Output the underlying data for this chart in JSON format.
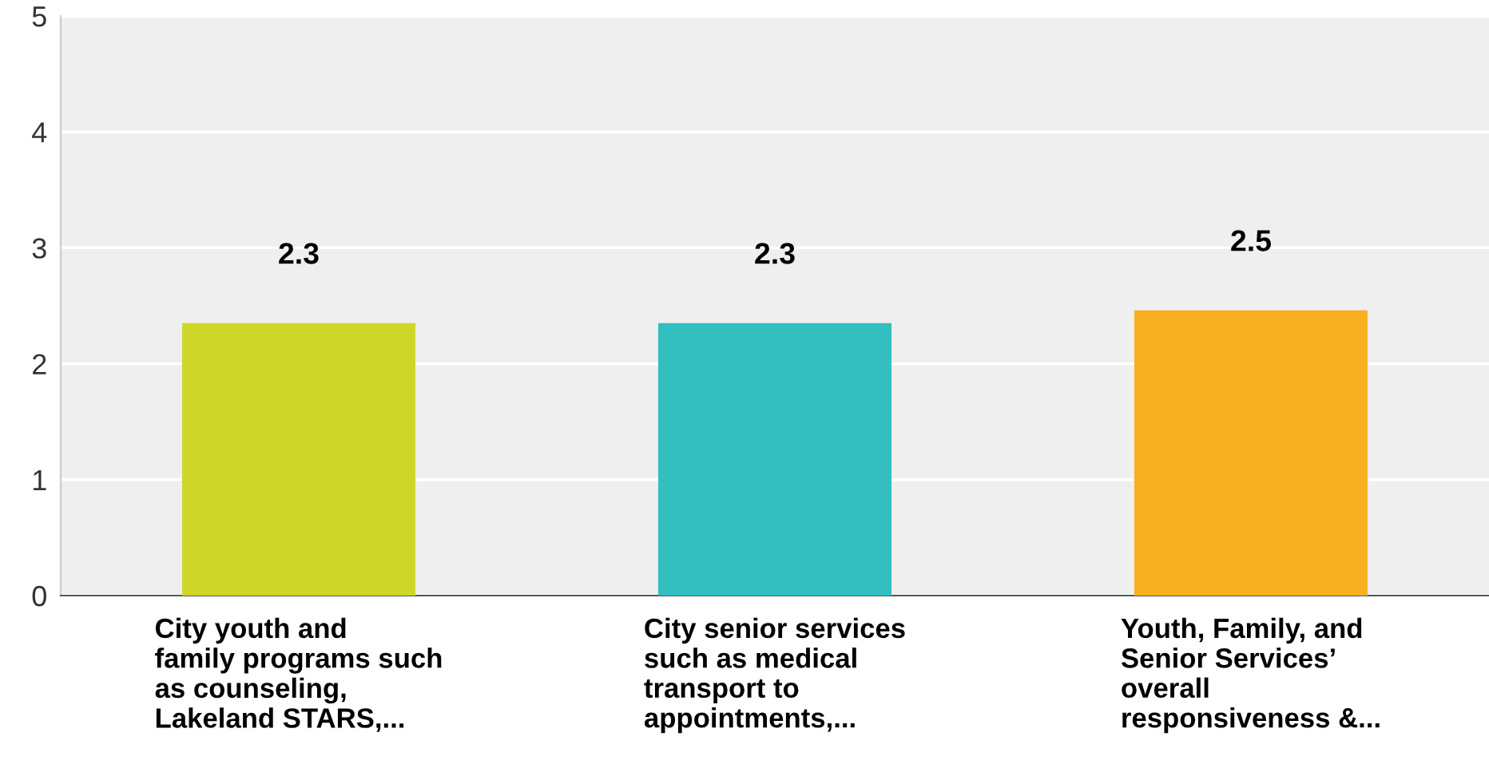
{
  "chart_data": {
    "type": "bar",
    "categories": [
      "City youth and\nfamily programs such\nas counseling,\nLakeland STARS,...",
      "City senior services\nsuch as medical\ntransport to\nappointments,...",
      "Youth, Family, and\nSenior Services’\noverall\nresponsiveness &..."
    ],
    "values": [
      2.35,
      2.35,
      2.46
    ],
    "value_labels": [
      "2.3",
      "2.3",
      "2.5"
    ],
    "colors": [
      "#cfd62a",
      "#33bfc0",
      "#f7b021"
    ],
    "ylim": [
      0,
      5
    ],
    "yticks": [
      0,
      1,
      2,
      3,
      4,
      5
    ],
    "grid": "y"
  }
}
